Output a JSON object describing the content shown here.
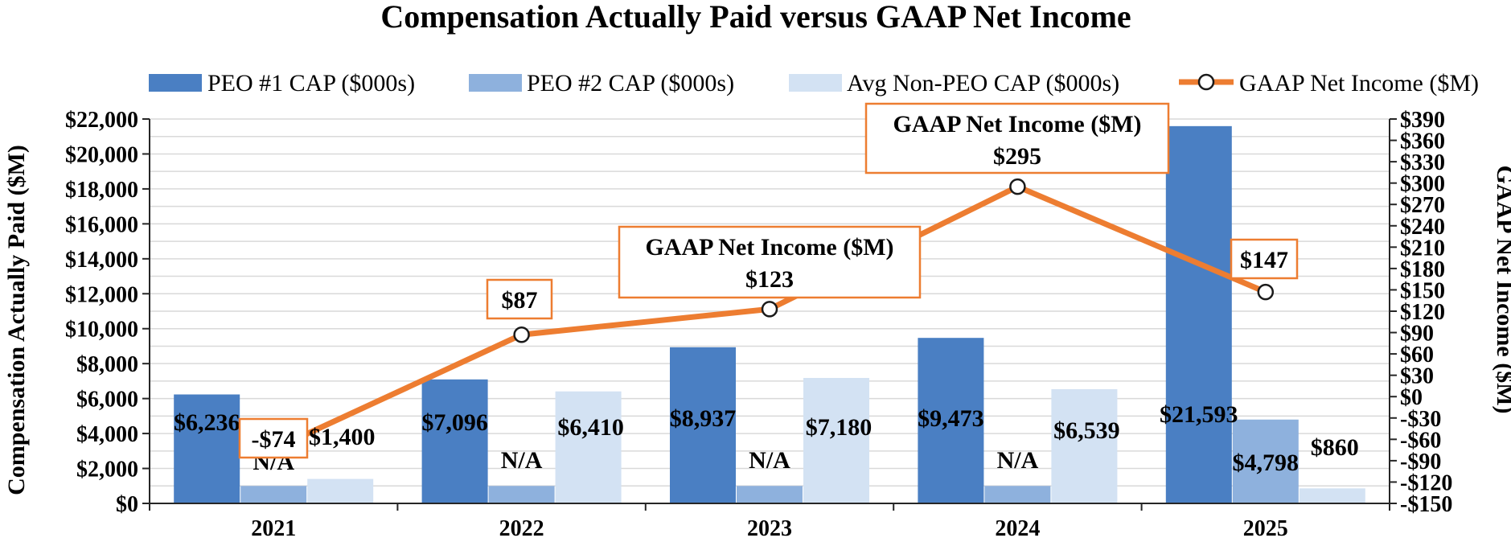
{
  "chart_data": {
    "type": "bar",
    "title": "Compensation Actually Paid versus GAAP Net Income",
    "categories": [
      "2021",
      "2022",
      "2023",
      "2024",
      "2025"
    ],
    "ylabel": "Compensation Actually Paid ($M)",
    "y2label": "GAAP Net Income ($M)",
    "ylim": [
      0,
      22000
    ],
    "yticks": [
      0,
      2000,
      4000,
      6000,
      8000,
      10000,
      12000,
      14000,
      16000,
      18000,
      20000,
      22000
    ],
    "ytick_labels": [
      "$0",
      "$2,000",
      "$4,000",
      "$6,000",
      "$8,000",
      "$10,000",
      "$12,000",
      "$14,000",
      "$16,000",
      "$18,000",
      "$20,000",
      "$22,000"
    ],
    "y2lim": [
      -150,
      390
    ],
    "y2ticks": [
      -150,
      -120,
      -90,
      -60,
      -30,
      0,
      30,
      60,
      90,
      120,
      150,
      180,
      210,
      240,
      270,
      300,
      330,
      360,
      390
    ],
    "y2tick_labels": [
      "-$150",
      "-$120",
      "-$90",
      "-$60",
      "-$30",
      "$0",
      "$30",
      "$60",
      "$90",
      "$120",
      "$150",
      "$180",
      "$210",
      "$240",
      "$270",
      "$300",
      "$330",
      "$360",
      "$390"
    ],
    "legend_position": "top",
    "grid": true,
    "series": [
      {
        "name": "PEO #1 CAP ($000s)",
        "kind": "bar",
        "color": "#4a7fc3",
        "values": [
          6236,
          7096,
          8937,
          9473,
          21593
        ],
        "labels": [
          "$6,236",
          "$7,096",
          "$8,937",
          "$9,473",
          "$21,593"
        ]
      },
      {
        "name": "PEO #2 CAP ($000s)",
        "kind": "bar",
        "color": "#8eb1dd",
        "values": [
          1000,
          1000,
          1000,
          1000,
          4798
        ],
        "labels": [
          "N/A",
          "N/A",
          "N/A",
          "N/A",
          "$4,798"
        ]
      },
      {
        "name": "Avg Non-PEO CAP ($000s)",
        "kind": "bar",
        "color": "#d3e2f3",
        "values": [
          1400,
          6410,
          7180,
          6539,
          860
        ],
        "labels": [
          "$1,400",
          "$6,410",
          "$7,180",
          "$6,539",
          "$860"
        ]
      },
      {
        "name": "GAAP Net Income ($M)",
        "kind": "line",
        "axis": "secondary",
        "color": "#ed7d31",
        "values": [
          -74,
          87,
          123,
          295,
          147
        ],
        "labels": [
          "-$74",
          "$87",
          "$123",
          "$295",
          "$147"
        ],
        "callout_headers": [
          "",
          "",
          "GAAP Net Income ($M)",
          "GAAP Net Income ($M)",
          ""
        ]
      }
    ]
  }
}
